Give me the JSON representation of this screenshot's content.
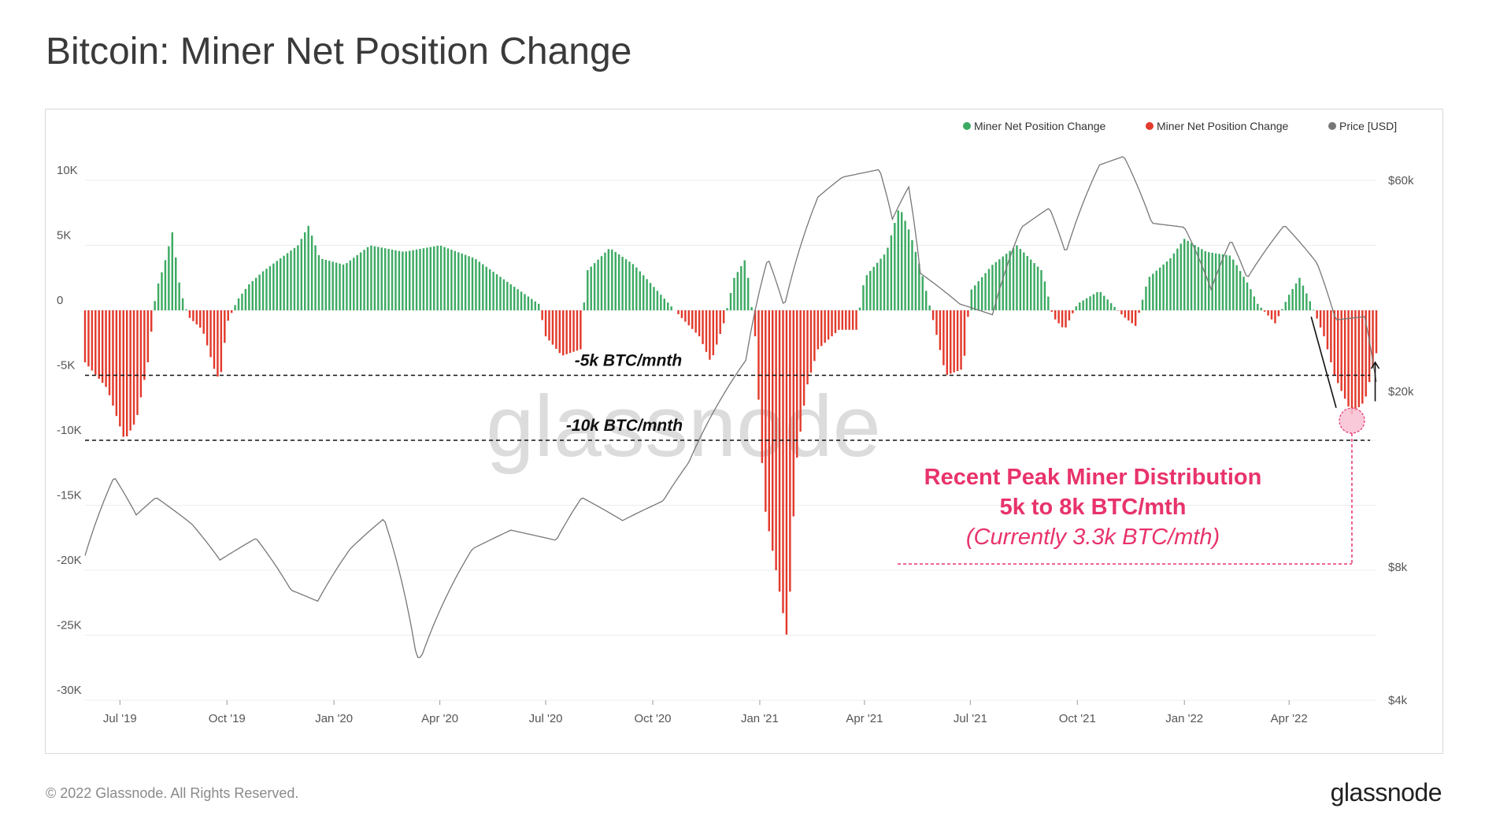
{
  "title": "Bitcoin: Miner Net Position Change",
  "footer": "© 2022 Glassnode. All Rights Reserved.",
  "brand": "glassnode",
  "watermark": "glassnode",
  "colors": {
    "green": "#3daa64",
    "red": "#e23a2c",
    "price": "#777777",
    "accent": "#e8336b"
  },
  "chart_data": {
    "type": "bar",
    "title": "Bitcoin: Miner Net Position Change",
    "legend": [
      {
        "label": "Miner Net Position Change",
        "color": "#3daa64"
      },
      {
        "label": "Miner Net Position Change",
        "color": "#e23a2c"
      },
      {
        "label": "Price [USD]",
        "color": "#777777"
      }
    ],
    "legend_position": "top-right",
    "y_left": {
      "ylim": [
        -30000,
        10000
      ],
      "ticks": [
        10000,
        5000,
        0,
        -5000,
        -10000,
        -15000,
        -20000,
        -25000,
        -30000
      ],
      "tick_labels": [
        "10K",
        "5K",
        "0",
        "-5K",
        "-10K",
        "-15K",
        "-20K",
        "-25K",
        "-30K"
      ]
    },
    "y_right": {
      "scale": "log",
      "ylim": [
        4000,
        60000
      ],
      "ticks": [
        60000,
        20000,
        8000,
        4000
      ],
      "tick_labels": [
        "$60k",
        "$20k",
        "$8k",
        "$4k"
      ]
    },
    "x_axis": {
      "range": [
        "2019-06-01",
        "2022-06-15"
      ],
      "ticks": [
        "2019-07-01",
        "2019-10-01",
        "2020-01-01",
        "2020-04-01",
        "2020-07-01",
        "2020-10-01",
        "2021-01-01",
        "2021-04-01",
        "2021-07-01",
        "2021-10-01",
        "2022-01-01",
        "2022-04-01"
      ],
      "tick_labels": [
        "Jul '19",
        "Oct '19",
        "Jan '20",
        "Apr '20",
        "Jul '20",
        "Oct '20",
        "Jan '21",
        "Apr '21",
        "Jul '21",
        "Oct '21",
        "Jan '22",
        "Apr '22"
      ]
    },
    "net_position_keypoints": [
      [
        "2019-06-01",
        -4000
      ],
      [
        "2019-06-20",
        -6000
      ],
      [
        "2019-07-05",
        -10000
      ],
      [
        "2019-07-15",
        -8500
      ],
      [
        "2019-07-25",
        -4000
      ],
      [
        "2019-08-01",
        1500
      ],
      [
        "2019-08-08",
        3500
      ],
      [
        "2019-08-15",
        6000
      ],
      [
        "2019-08-22",
        1500
      ],
      [
        "2019-08-29",
        -500
      ],
      [
        "2019-09-10",
        -1500
      ],
      [
        "2019-09-20",
        -4500
      ],
      [
        "2019-09-25",
        -5500
      ],
      [
        "2019-10-01",
        -1000
      ],
      [
        "2019-10-10",
        800
      ],
      [
        "2019-10-20",
        2000
      ],
      [
        "2019-11-01",
        3000
      ],
      [
        "2019-12-01",
        5000
      ],
      [
        "2019-12-10",
        6500
      ],
      [
        "2019-12-20",
        4000
      ],
      [
        "2020-01-10",
        3500
      ],
      [
        "2020-02-01",
        5000
      ],
      [
        "2020-03-01",
        4500
      ],
      [
        "2020-04-01",
        5000
      ],
      [
        "2020-05-01",
        4000
      ],
      [
        "2020-06-01",
        2000
      ],
      [
        "2020-06-25",
        500
      ],
      [
        "2020-07-01",
        -2000
      ],
      [
        "2020-07-15",
        -3500
      ],
      [
        "2020-07-31",
        -3000
      ],
      [
        "2020-08-05",
        3000
      ],
      [
        "2020-08-25",
        4800
      ],
      [
        "2020-09-15",
        3500
      ],
      [
        "2020-10-10",
        1000
      ],
      [
        "2020-10-25",
        -500
      ],
      [
        "2020-11-10",
        -2000
      ],
      [
        "2020-11-20",
        -4000
      ],
      [
        "2020-12-01",
        -1000
      ],
      [
        "2020-12-10",
        2500
      ],
      [
        "2020-12-20",
        4000
      ],
      [
        "2020-12-28",
        -2000
      ],
      [
        "2021-01-05",
        -15000
      ],
      [
        "2021-01-15",
        -20000
      ],
      [
        "2021-01-25",
        -25500
      ],
      [
        "2021-02-01",
        -12000
      ],
      [
        "2021-02-10",
        -6000
      ],
      [
        "2021-02-20",
        -3000
      ],
      [
        "2021-03-10",
        -1500
      ],
      [
        "2021-03-25",
        -1500
      ],
      [
        "2021-04-01",
        2500
      ],
      [
        "2021-04-20",
        4500
      ],
      [
        "2021-05-01",
        8000
      ],
      [
        "2021-05-10",
        6000
      ],
      [
        "2021-05-20",
        3000
      ],
      [
        "2021-06-01",
        -1500
      ],
      [
        "2021-06-10",
        -5000
      ],
      [
        "2021-06-25",
        -4500
      ],
      [
        "2021-07-01",
        1500
      ],
      [
        "2021-07-20",
        3500
      ],
      [
        "2021-08-10",
        5000
      ],
      [
        "2021-09-01",
        3000
      ],
      [
        "2021-09-10",
        -500
      ],
      [
        "2021-09-20",
        -1500
      ],
      [
        "2021-10-01",
        500
      ],
      [
        "2021-10-20",
        1500
      ],
      [
        "2021-11-10",
        -500
      ],
      [
        "2021-11-20",
        -1200
      ],
      [
        "2021-12-01",
        2500
      ],
      [
        "2021-12-20",
        4000
      ],
      [
        "2022-01-01",
        5500
      ],
      [
        "2022-01-20",
        4500
      ],
      [
        "2022-02-10",
        4200
      ],
      [
        "2022-02-25",
        2000
      ],
      [
        "2022-03-05",
        500
      ],
      [
        "2022-03-20",
        -1000
      ],
      [
        "2022-04-01",
        1200
      ],
      [
        "2022-04-10",
        2500
      ],
      [
        "2022-04-20",
        500
      ],
      [
        "2022-05-01",
        -2000
      ],
      [
        "2022-05-10",
        -5000
      ],
      [
        "2022-05-25",
        -8000
      ],
      [
        "2022-06-05",
        -7000
      ],
      [
        "2022-06-15",
        -3300
      ]
    ],
    "price_keypoints": [
      [
        "2019-06-01",
        8500
      ],
      [
        "2019-06-26",
        12800
      ],
      [
        "2019-07-15",
        10500
      ],
      [
        "2019-08-01",
        11500
      ],
      [
        "2019-09-01",
        10000
      ],
      [
        "2019-09-25",
        8300
      ],
      [
        "2019-10-26",
        9300
      ],
      [
        "2019-11-25",
        7100
      ],
      [
        "2019-12-18",
        6700
      ],
      [
        "2020-01-15",
        8800
      ],
      [
        "2020-02-13",
        10300
      ],
      [
        "2020-03-12",
        5000
      ],
      [
        "2020-03-16",
        5000
      ],
      [
        "2020-04-29",
        8800
      ],
      [
        "2020-06-01",
        9700
      ],
      [
        "2020-07-10",
        9200
      ],
      [
        "2020-08-01",
        11500
      ],
      [
        "2020-09-05",
        10200
      ],
      [
        "2020-10-10",
        11300
      ],
      [
        "2020-11-01",
        13800
      ],
      [
        "2020-11-25",
        18500
      ],
      [
        "2020-12-20",
        23500
      ],
      [
        "2021-01-08",
        40000
      ],
      [
        "2021-01-22",
        31000
      ],
      [
        "2021-02-20",
        55000
      ],
      [
        "2021-03-13",
        61000
      ],
      [
        "2021-04-14",
        63500
      ],
      [
        "2021-04-25",
        49000
      ],
      [
        "2021-05-09",
        58000
      ],
      [
        "2021-05-19",
        37000
      ],
      [
        "2021-06-22",
        31500
      ],
      [
        "2021-07-20",
        29800
      ],
      [
        "2021-08-14",
        47000
      ],
      [
        "2021-09-07",
        52000
      ],
      [
        "2021-09-21",
        41000
      ],
      [
        "2021-10-20",
        65000
      ],
      [
        "2021-11-10",
        68000
      ],
      [
        "2021-12-04",
        48000
      ],
      [
        "2022-01-01",
        47000
      ],
      [
        "2022-01-24",
        34000
      ],
      [
        "2022-02-10",
        44000
      ],
      [
        "2022-02-24",
        36000
      ],
      [
        "2022-03-28",
        47500
      ],
      [
        "2022-04-25",
        39000
      ],
      [
        "2022-05-11",
        29000
      ],
      [
        "2022-06-05",
        29500
      ],
      [
        "2022-06-13",
        22500
      ],
      [
        "2022-06-15",
        21000
      ]
    ],
    "reference_lines": [
      {
        "label": "-5k BTC/mnth",
        "value": -5000
      },
      {
        "label": "-10k BTC/mnth",
        "value": -10000
      }
    ],
    "annotation": {
      "line1": "Recent Peak Miner Distribution",
      "line2": "5k to 8k BTC/mth",
      "line3": "(Currently 3.3k BTC/mth)"
    }
  }
}
